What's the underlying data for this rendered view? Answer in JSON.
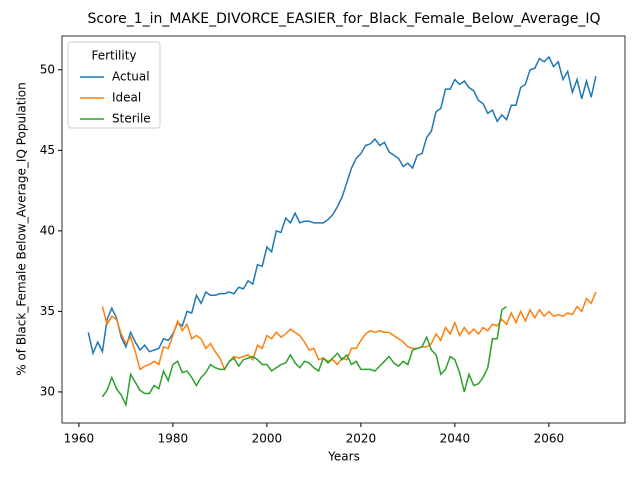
{
  "chart_data": {
    "type": "line",
    "title": "Score_1_in_MAKE_DIVORCE_EASIER_for_Black_Female_Below_Average_IQ",
    "x_label": "Years",
    "y_label": "% of Black_Female Below_Average_IQ Population",
    "legend_title": "Fertility",
    "legend_loc": "upper left",
    "grid": false,
    "xlim": [
      1956.4,
      2076.2
    ],
    "ylim": [
      28.07,
      52.1
    ],
    "xticks": [
      1960,
      1980,
      2000,
      2020,
      2040,
      2060
    ],
    "yticks": [
      30,
      35,
      40,
      45,
      50
    ],
    "x": [
      1962,
      1963,
      1964,
      1965,
      1966,
      1967,
      1968,
      1969,
      1970,
      1971,
      1972,
      1973,
      1974,
      1975,
      1976,
      1977,
      1978,
      1979,
      1980,
      1981,
      1982,
      1983,
      1984,
      1985,
      1986,
      1987,
      1988,
      1989,
      1990,
      1991,
      1992,
      1993,
      1994,
      1995,
      1996,
      1997,
      1998,
      1999,
      2000,
      2001,
      2002,
      2003,
      2004,
      2005,
      2006,
      2007,
      2008,
      2009,
      2010,
      2011,
      2012,
      2013,
      2014,
      2015,
      2016,
      2017,
      2018,
      2019,
      2020,
      2021,
      2022,
      2023,
      2024,
      2025,
      2026,
      2027,
      2028,
      2029,
      2030,
      2031,
      2032,
      2033,
      2034,
      2035,
      2036,
      2037,
      2038,
      2039,
      2040,
      2041,
      2042,
      2043,
      2044,
      2045,
      2046,
      2047,
      2048,
      2049,
      2050,
      2051,
      2052,
      2053,
      2054,
      2055,
      2056,
      2057,
      2058,
      2059,
      2060,
      2061,
      2062,
      2063,
      2064,
      2065,
      2066,
      2067,
      2068,
      2069,
      2070
    ],
    "series": [
      {
        "name": "Actual",
        "color": "#1f77b4",
        "values": [
          33.7,
          32.4,
          33.1,
          32.5,
          34.5,
          35.2,
          34.6,
          33.4,
          32.8,
          33.7,
          33.1,
          32.6,
          32.9,
          32.5,
          32.6,
          32.7,
          33.3,
          33.2,
          33.6,
          34.3,
          34.1,
          35.0,
          34.9,
          36.0,
          35.5,
          36.2,
          36.0,
          36.0,
          36.1,
          36.1,
          36.2,
          36.1,
          36.5,
          36.4,
          36.9,
          36.7,
          37.9,
          37.8,
          39.0,
          38.7,
          40.0,
          39.9,
          40.8,
          40.5,
          41.1,
          40.5,
          40.6,
          40.6,
          40.5,
          40.5,
          40.5,
          40.7,
          41.0,
          41.5,
          42.1,
          43.0,
          43.9,
          44.5,
          44.8,
          45.3,
          45.4,
          45.7,
          45.3,
          45.5,
          44.9,
          44.7,
          44.5,
          44.0,
          44.2,
          43.9,
          44.7,
          44.8,
          45.8,
          46.2,
          47.4,
          47.6,
          48.8,
          48.8,
          49.4,
          49.1,
          49.3,
          48.9,
          48.7,
          48.1,
          47.9,
          47.3,
          47.5,
          46.8,
          47.2,
          46.9,
          47.8,
          47.8,
          48.9,
          49.1,
          50.0,
          50.1,
          50.7,
          50.5,
          50.8,
          50.2,
          50.5,
          49.4,
          49.9,
          48.6,
          49.4,
          48.2,
          49.3,
          48.3,
          49.6
        ]
      },
      {
        "name": "Ideal",
        "color": "#ff7f0e",
        "values": [
          null,
          null,
          null,
          35.3,
          34.2,
          34.7,
          34.5,
          33.6,
          33.0,
          33.4,
          32.5,
          31.4,
          31.6,
          31.7,
          31.9,
          31.7,
          32.8,
          32.7,
          33.5,
          34.4,
          33.8,
          34.2,
          33.3,
          33.5,
          33.3,
          32.7,
          33.0,
          32.5,
          32.1,
          31.4,
          31.9,
          32.2,
          32.1,
          32.2,
          32.3,
          32.0,
          32.9,
          32.7,
          33.5,
          33.3,
          33.7,
          33.4,
          33.6,
          33.9,
          33.7,
          33.5,
          33.1,
          32.6,
          32.7,
          32.0,
          32.1,
          31.9,
          32.0,
          31.7,
          32.1,
          32.0,
          32.7,
          32.7,
          33.2,
          33.6,
          33.8,
          33.7,
          33.8,
          33.7,
          33.7,
          33.5,
          33.3,
          33.1,
          32.8,
          32.7,
          32.7,
          32.8,
          32.8,
          33.0,
          33.6,
          33.2,
          34.0,
          33.6,
          34.3,
          33.5,
          34.0,
          33.6,
          33.9,
          33.6,
          34.0,
          33.8,
          34.2,
          34.1,
          34.5,
          34.2,
          34.9,
          34.3,
          35.0,
          34.4,
          35.1,
          34.6,
          35.1,
          34.7,
          35.0,
          34.7,
          34.8,
          34.7,
          34.9,
          34.8,
          35.3,
          35.0,
          35.8,
          35.5,
          36.2
        ]
      },
      {
        "name": "Sterile",
        "color": "#2ca02c",
        "values": [
          null,
          null,
          null,
          29.7,
          30.1,
          30.9,
          30.2,
          29.8,
          29.2,
          31.1,
          30.6,
          30.1,
          29.9,
          29.9,
          30.4,
          30.2,
          31.3,
          30.7,
          31.7,
          31.9,
          31.2,
          31.3,
          30.9,
          30.4,
          30.9,
          31.2,
          31.7,
          31.5,
          31.4,
          31.4,
          31.9,
          32.1,
          31.6,
          32.0,
          32.1,
          32.2,
          32.0,
          31.7,
          31.7,
          31.3,
          31.5,
          31.7,
          31.8,
          32.3,
          31.8,
          31.5,
          31.9,
          31.8,
          31.5,
          31.3,
          32.1,
          31.8,
          32.1,
          32.4,
          32.0,
          32.3,
          31.7,
          31.9,
          31.4,
          31.4,
          31.4,
          31.3,
          31.6,
          31.9,
          32.2,
          31.8,
          31.6,
          31.9,
          31.7,
          32.6,
          32.7,
          32.8,
          33.4,
          32.6,
          32.3,
          31.1,
          31.4,
          32.2,
          32.0,
          31.2,
          30.0,
          31.1,
          30.4,
          30.5,
          30.9,
          31.5,
          33.3,
          33.3,
          35.1,
          35.3,
          null,
          null,
          null,
          null,
          null,
          null,
          null,
          null,
          null,
          null,
          null,
          null,
          null,
          null,
          null,
          null,
          null,
          null,
          null
        ]
      }
    ]
  }
}
